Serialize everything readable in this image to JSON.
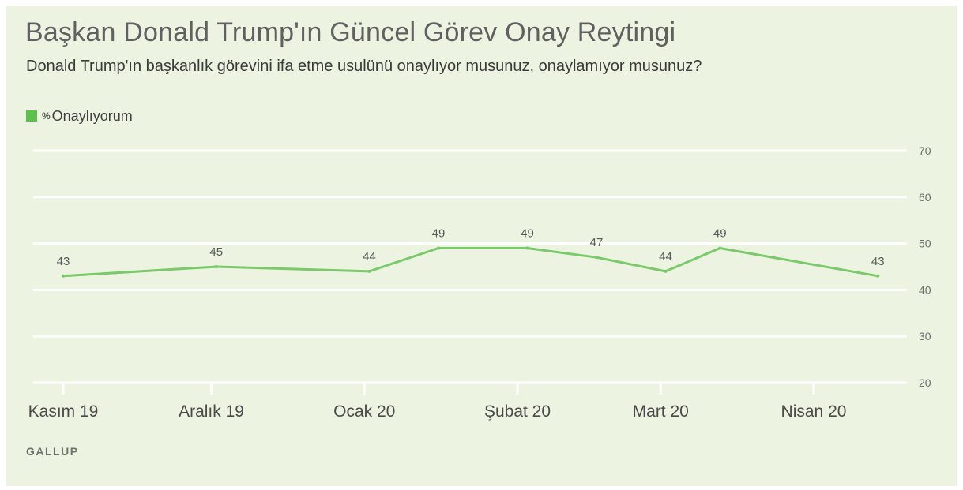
{
  "header": {
    "title": "Başkan Donald Trump'ın Güncel Görev Onay Reytingi",
    "subtitle": "Donald Trump'ın başkanlık görevini ifa etme usulünü onaylıyor musunuz, onaylamıyor musunuz?"
  },
  "legend": {
    "prefix": "%",
    "label": "Onaylıyorum"
  },
  "source": "GALLUP",
  "colors": {
    "background": "#ecf3e1",
    "line": "#7ac96a",
    "swatch": "#5cbf4e",
    "grid": "#ffffff"
  },
  "chart_data": {
    "type": "line",
    "series": [
      {
        "name": "% Onaylıyorum",
        "values": [
          43,
          45,
          44,
          49,
          49,
          47,
          44,
          49,
          43
        ]
      }
    ],
    "x": [
      "2019-11-01",
      "2019-12-02",
      "2020-01-02",
      "2020-01-16",
      "2020-02-03",
      "2020-02-17",
      "2020-03-02",
      "2020-03-13",
      "2020-04-14"
    ],
    "month_labels": [
      "Kasım 19",
      "Aralık 19",
      "Ocak 20",
      "Şubat 20",
      "Mart 20",
      "Nisan 20"
    ],
    "month_dates": [
      "2019-11-01",
      "2019-12-01",
      "2020-01-01",
      "2020-02-01",
      "2020-03-01",
      "2020-04-01"
    ],
    "y_ticks": [
      20,
      30,
      40,
      50,
      60,
      70
    ],
    "ylim": [
      20,
      70
    ],
    "grid": true,
    "axis_side": "right",
    "data_labels": true
  }
}
